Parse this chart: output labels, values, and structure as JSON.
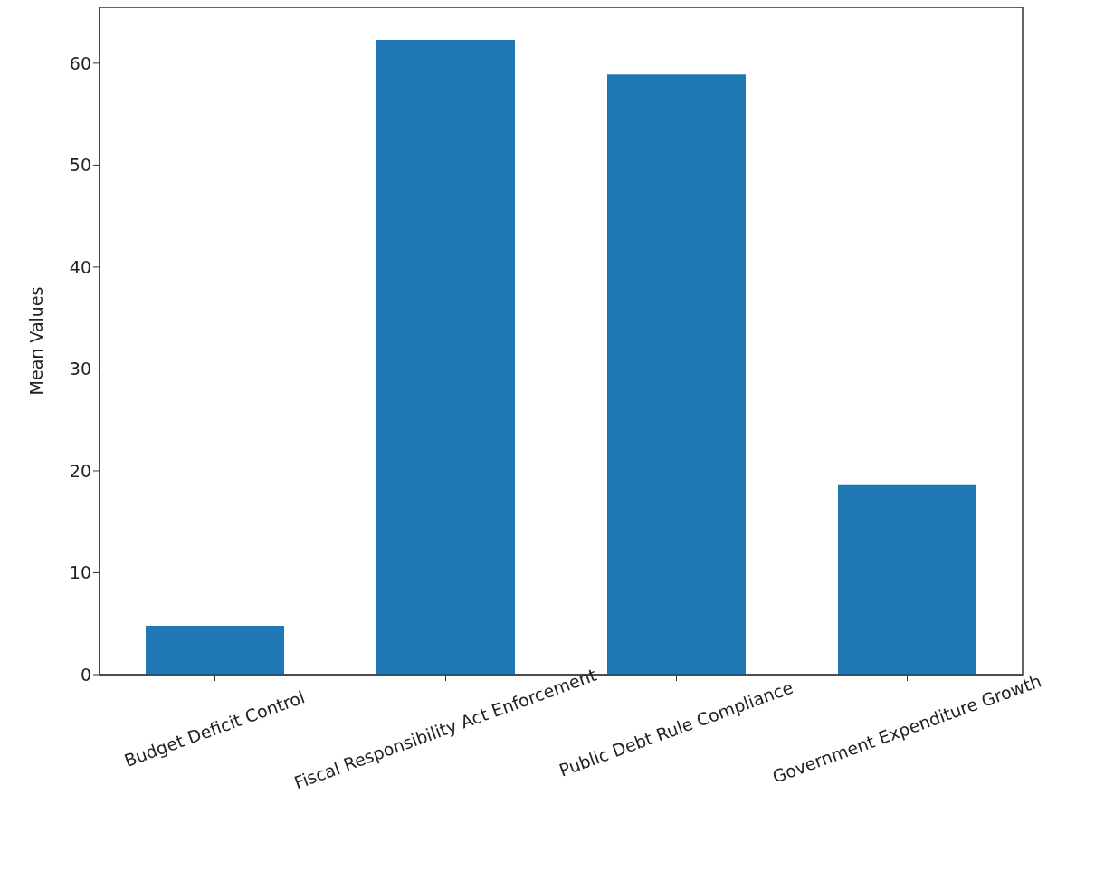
{
  "chart_data": {
    "type": "bar",
    "ylabel": "Mean Values",
    "categories": [
      "Budget Deficit Control",
      "Fiscal Responsibility Act Enforcement",
      "Public Debt Rule Compliance",
      "Government Expenditure Growth"
    ],
    "values": [
      4.8,
      62.3,
      58.9,
      18.6
    ],
    "color": "#1f77b4",
    "ylim": [
      0,
      65.5
    ],
    "yticks": [
      0,
      10,
      20,
      30,
      40,
      50,
      60
    ],
    "grid": false
  }
}
